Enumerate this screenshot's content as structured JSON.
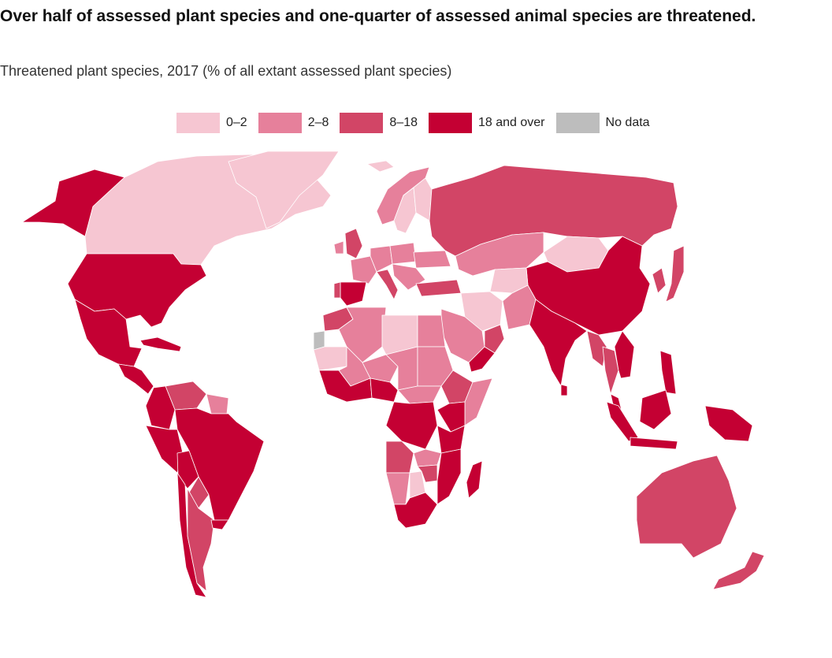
{
  "header": {
    "title": "Over half of assessed plant species and one-quarter of assessed animal species are threatened.",
    "subtitle": "Threatened plant species, 2017 (% of all extant assessed plant species)"
  },
  "legend": {
    "items": [
      {
        "label": "0–2",
        "color": "#f6c6d2"
      },
      {
        "label": "2–8",
        "color": "#e6809b"
      },
      {
        "label": "8–18",
        "color": "#d24566"
      },
      {
        "label": "18 and over",
        "color": "#c40033"
      },
      {
        "label": "No data",
        "color": "#bdbdbd"
      }
    ]
  },
  "map": {
    "regions": [
      {
        "name": "Alaska",
        "class": "18 and over"
      },
      {
        "name": "Canada",
        "class": "0–2"
      },
      {
        "name": "Greenland",
        "class": "0–2"
      },
      {
        "name": "United States",
        "class": "18 and over"
      },
      {
        "name": "Mexico",
        "class": "18 and over"
      },
      {
        "name": "Central America",
        "class": "18 and over"
      },
      {
        "name": "Cuba",
        "class": "18 and over"
      },
      {
        "name": "Venezuela",
        "class": "8–18"
      },
      {
        "name": "Guyana",
        "class": "2–8"
      },
      {
        "name": "Colombia",
        "class": "18 and over"
      },
      {
        "name": "Brazil",
        "class": "18 and over"
      },
      {
        "name": "Peru",
        "class": "18 and over"
      },
      {
        "name": "Bolivia",
        "class": "18 and over"
      },
      {
        "name": "Paraguay",
        "class": "8–18"
      },
      {
        "name": "Chile",
        "class": "18 and over"
      },
      {
        "name": "Argentina",
        "class": "8–18"
      },
      {
        "name": "Uruguay",
        "class": "18 and over"
      },
      {
        "name": "Iceland",
        "class": "0–2"
      },
      {
        "name": "Norway",
        "class": "2–8"
      },
      {
        "name": "Sweden",
        "class": "0–2"
      },
      {
        "name": "Finland",
        "class": "0–2"
      },
      {
        "name": "United Kingdom",
        "class": "8–18"
      },
      {
        "name": "Ireland",
        "class": "2–8"
      },
      {
        "name": "France",
        "class": "2–8"
      },
      {
        "name": "Spain",
        "class": "18 and over"
      },
      {
        "name": "Portugal",
        "class": "8–18"
      },
      {
        "name": "Italy",
        "class": "8–18"
      },
      {
        "name": "Germany",
        "class": "2–8"
      },
      {
        "name": "Poland",
        "class": "2–8"
      },
      {
        "name": "Ukraine",
        "class": "2–8"
      },
      {
        "name": "Balkans",
        "class": "2–8"
      },
      {
        "name": "Turkey",
        "class": "8–18"
      },
      {
        "name": "Russia",
        "class": "8–18"
      },
      {
        "name": "Kazakhstan",
        "class": "2–8"
      },
      {
        "name": "Mongolia",
        "class": "0–2"
      },
      {
        "name": "China",
        "class": "18 and over"
      },
      {
        "name": "Korea",
        "class": "8–18"
      },
      {
        "name": "Japan",
        "class": "8–18"
      },
      {
        "name": "Iran",
        "class": "0–2"
      },
      {
        "name": "Afghanistan",
        "class": "0–2"
      },
      {
        "name": "Pakistan",
        "class": "2–8"
      },
      {
        "name": "Saudi Arabia",
        "class": "2–8"
      },
      {
        "name": "Yemen",
        "class": "18 and over"
      },
      {
        "name": "Oman",
        "class": "8–18"
      },
      {
        "name": "India",
        "class": "18 and over"
      },
      {
        "name": "Sri Lanka",
        "class": "18 and over"
      },
      {
        "name": "Myanmar",
        "class": "8–18"
      },
      {
        "name": "Thailand",
        "class": "8–18"
      },
      {
        "name": "Vietnam",
        "class": "18 and over"
      },
      {
        "name": "Malaysia",
        "class": "18 and over"
      },
      {
        "name": "Philippines",
        "class": "18 and over"
      },
      {
        "name": "Sumatra",
        "class": "18 and over"
      },
      {
        "name": "Borneo",
        "class": "18 and over"
      },
      {
        "name": "Java",
        "class": "18 and over"
      },
      {
        "name": "New Guinea",
        "class": "18 and over"
      },
      {
        "name": "Australia",
        "class": "8–18"
      },
      {
        "name": "New Zealand",
        "class": "8–18"
      },
      {
        "name": "Western Sahara",
        "class": "No data"
      },
      {
        "name": "Morocco",
        "class": "8–18"
      },
      {
        "name": "Algeria",
        "class": "2–8"
      },
      {
        "name": "Libya",
        "class": "0–2"
      },
      {
        "name": "Egypt",
        "class": "2–8"
      },
      {
        "name": "Mauritania",
        "class": "0–2"
      },
      {
        "name": "Mali",
        "class": "2–8"
      },
      {
        "name": "Niger",
        "class": "2–8"
      },
      {
        "name": "Chad",
        "class": "2–8"
      },
      {
        "name": "Sudan",
        "class": "2–8"
      },
      {
        "name": "Ethiopia",
        "class": "8–18"
      },
      {
        "name": "Somalia",
        "class": "2–8"
      },
      {
        "name": "West Africa coast",
        "class": "18 and over"
      },
      {
        "name": "Nigeria",
        "class": "18 and over"
      },
      {
        "name": "Central African Republic",
        "class": "2–8"
      },
      {
        "name": "DR Congo",
        "class": "18 and over"
      },
      {
        "name": "Kenya",
        "class": "18 and over"
      },
      {
        "name": "Tanzania",
        "class": "18 and over"
      },
      {
        "name": "Angola",
        "class": "8–18"
      },
      {
        "name": "Zambia",
        "class": "2–8"
      },
      {
        "name": "Mozambique",
        "class": "18 and over"
      },
      {
        "name": "Namibia",
        "class": "2–8"
      },
      {
        "name": "Botswana",
        "class": "0–2"
      },
      {
        "name": "Zimbabwe",
        "class": "8–18"
      },
      {
        "name": "South Africa",
        "class": "18 and over"
      },
      {
        "name": "Madagascar",
        "class": "18 and over"
      }
    ]
  }
}
